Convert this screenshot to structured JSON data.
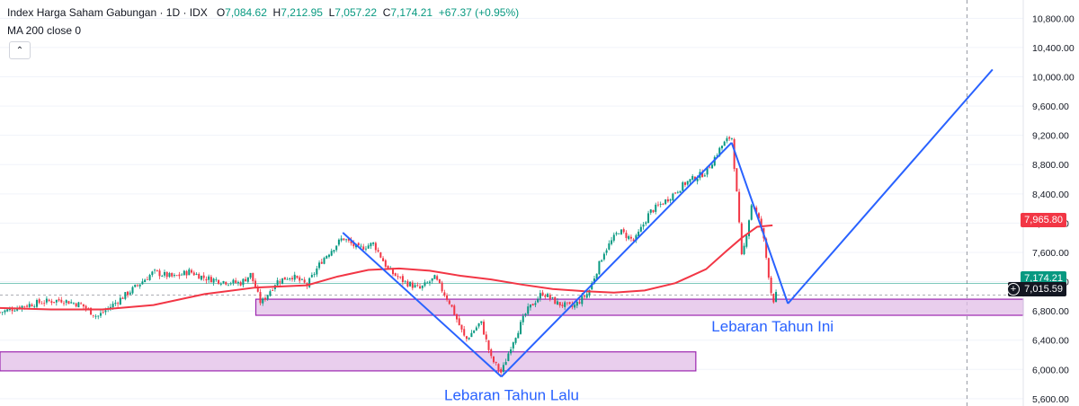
{
  "header": {
    "symbol": "Index Harga Saham Gabungan · 1D · IDX",
    "o_label": "O",
    "o_value": "7,084.62",
    "h_label": "H",
    "h_value": "7,212.95",
    "l_label": "L",
    "l_value": "7,057.22",
    "c_label": "C",
    "c_value": "7,174.21",
    "change": "+67.37 (+0.95%)",
    "indicator": "MA 200 close 0",
    "collapse_icon": "chevron-up-icon"
  },
  "price_tags": {
    "ma_value": "7,965.80",
    "last_price": "7,174.21",
    "crosshair_price": "7,015.59"
  },
  "colors": {
    "up": "#089981",
    "down": "#f23645",
    "ma": "#f23645",
    "drawing": "#2962ff",
    "zone_fill": "#e1bee7",
    "zone_stroke": "#9c27b0",
    "annotation_text": "#2962ff"
  },
  "chart_data": {
    "type": "line",
    "y_axis_ticks": [
      10800,
      10400,
      10000,
      9600,
      9200,
      8800,
      8400,
      8000,
      7600,
      7200,
      6800,
      6400,
      6000,
      5600
    ],
    "y_axis_tick_labels": [
      "10,800.00",
      "10,400.00",
      "10,000.00",
      "9,600.00",
      "9,200.00",
      "8,800.00",
      "8,400.00",
      "8,000.00",
      "7,600.00",
      "7,200.00",
      "6,800.00",
      "6,400.00",
      "6,000.00",
      "5,600.00"
    ],
    "ylim": [
      5500,
      11050
    ],
    "x_range": [
      0,
      100
    ],
    "price_series": [
      [
        0,
        6780
      ],
      [
        2,
        6860
      ],
      [
        4,
        6920
      ],
      [
        6,
        6950
      ],
      [
        8,
        6880
      ],
      [
        9.5,
        6720
      ],
      [
        11,
        6880
      ],
      [
        13,
        7100
      ],
      [
        15,
        7330
      ],
      [
        17,
        7260
      ],
      [
        18.5,
        7340
      ],
      [
        20,
        7250
      ],
      [
        22,
        7200
      ],
      [
        23.5,
        7180
      ],
      [
        24.5,
        7300
      ],
      [
        25.5,
        6900
      ],
      [
        27,
        7200
      ],
      [
        28.5,
        7280
      ],
      [
        30,
        7150
      ],
      [
        31.5,
        7500
      ],
      [
        33.5,
        7800
      ],
      [
        35,
        7650
      ],
      [
        36.5,
        7720
      ],
      [
        38,
        7350
      ],
      [
        39.5,
        7200
      ],
      [
        41,
        7100
      ],
      [
        42.5,
        7250
      ],
      [
        44,
        6900
      ],
      [
        45.5,
        6400
      ],
      [
        47,
        6650
      ],
      [
        48,
        6150
      ],
      [
        49,
        5950
      ],
      [
        50,
        6350
      ],
      [
        51.5,
        6800
      ],
      [
        53,
        7050
      ],
      [
        54.5,
        6900
      ],
      [
        56,
        6850
      ],
      [
        57.5,
        7050
      ],
      [
        59,
        7600
      ],
      [
        60.5,
        7900
      ],
      [
        62,
        7750
      ],
      [
        63.5,
        8150
      ],
      [
        65,
        8300
      ],
      [
        67,
        8550
      ],
      [
        69,
        8700
      ],
      [
        70.5,
        9050
      ],
      [
        71.5,
        9200
      ],
      [
        72,
        8400
      ],
      [
        72.5,
        7500
      ],
      [
        73.5,
        8300
      ],
      [
        74.5,
        7900
      ],
      [
        75.5,
        6920
      ],
      [
        76,
        7070
      ]
    ],
    "ma200_series": [
      [
        0,
        6840
      ],
      [
        5,
        6820
      ],
      [
        10,
        6820
      ],
      [
        15,
        6880
      ],
      [
        20,
        7030
      ],
      [
        25,
        7120
      ],
      [
        30,
        7150
      ],
      [
        33,
        7270
      ],
      [
        36,
        7360
      ],
      [
        39,
        7380
      ],
      [
        42,
        7350
      ],
      [
        45,
        7280
      ],
      [
        48,
        7230
      ],
      [
        51,
        7160
      ],
      [
        54,
        7100
      ],
      [
        57,
        7070
      ],
      [
        60,
        7050
      ],
      [
        63,
        7080
      ],
      [
        66,
        7180
      ],
      [
        69,
        7370
      ],
      [
        71,
        7620
      ],
      [
        72.5,
        7800
      ],
      [
        74,
        7950
      ],
      [
        75.5,
        7970
      ]
    ],
    "trend_lines": [
      {
        "from": [
          33.5,
          7870
        ],
        "to": [
          49,
          5900
        ]
      },
      {
        "from": [
          49,
          5900
        ],
        "to": [
          71.5,
          9100
        ]
      },
      {
        "from": [
          71.5,
          9100
        ],
        "to": [
          77,
          6900
        ]
      },
      {
        "from": [
          77,
          6900
        ],
        "to": [
          97,
          10100
        ]
      }
    ],
    "zones": [
      {
        "x": [
          0,
          68
        ],
        "y": [
          5980,
          6240
        ]
      },
      {
        "x": [
          25,
          100
        ],
        "y": [
          6740,
          6960
        ]
      }
    ],
    "annotations": [
      {
        "text": "Lebaran Tahun Lalu",
        "x": 50,
        "y": 5580
      },
      {
        "text": "Lebaran Tahun Ini",
        "x": 75.5,
        "y": 6520
      }
    ],
    "hlines": [
      {
        "value": 7174.21,
        "style": "solid"
      },
      {
        "value": 7015.59,
        "style": "dashed"
      }
    ],
    "vline_x": 94.5
  }
}
